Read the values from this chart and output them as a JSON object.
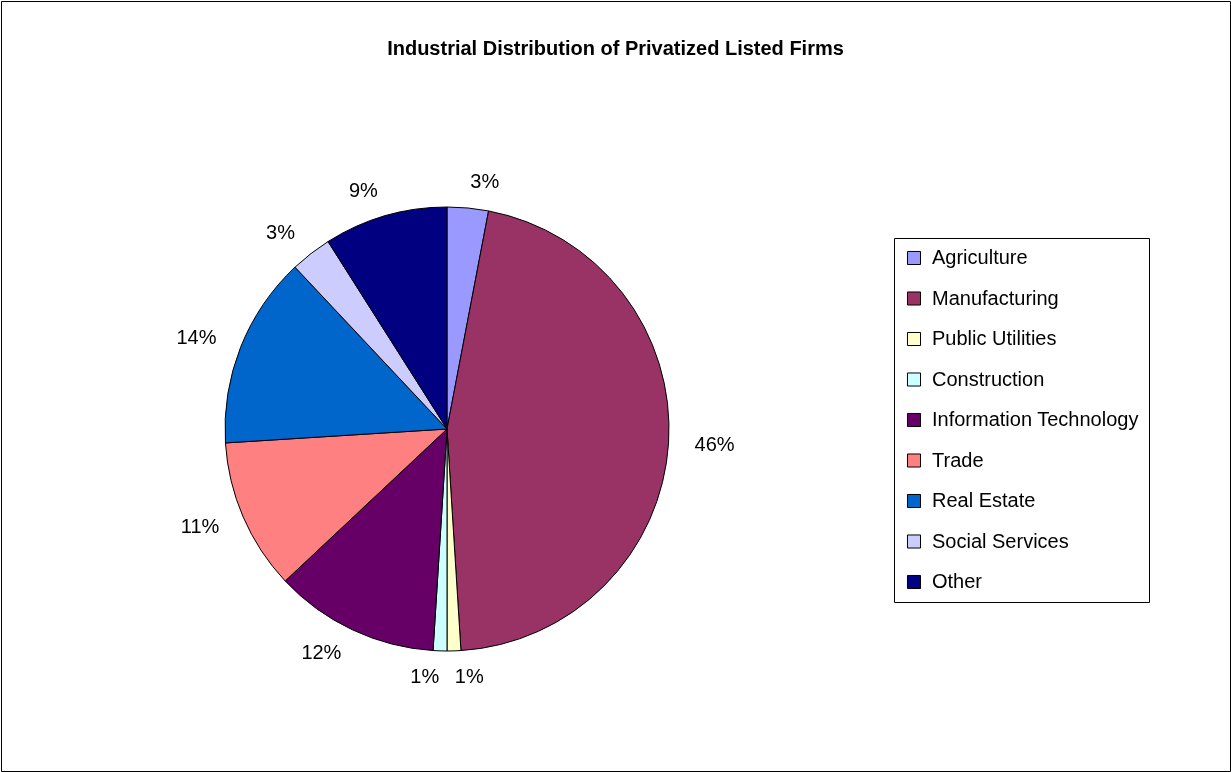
{
  "chart_data": {
    "type": "pie",
    "title": "Industrial Distribution of Privatized Listed Firms",
    "categories": [
      "Agriculture",
      "Manufacturing",
      "Public Utilities",
      "Construction",
      "Information Technology",
      "Trade",
      "Real Estate",
      "Social Services",
      "Other"
    ],
    "values": [
      3,
      46,
      1,
      1,
      12,
      11,
      14,
      3,
      9
    ],
    "colors": [
      "#9999ff",
      "#993366",
      "#ffffcc",
      "#ccffff",
      "#660066",
      "#ff8080",
      "#0066cc",
      "#ccccff",
      "#000080"
    ],
    "value_labels": [
      "3%",
      "46%",
      "1%",
      "1%",
      "12%",
      "11%",
      "14%",
      "3%",
      "9%"
    ],
    "legend": "right"
  }
}
